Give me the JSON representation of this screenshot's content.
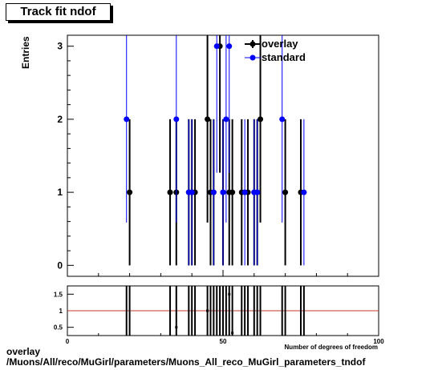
{
  "title": "Track fit ndof",
  "footer": {
    "line1": "overlay",
    "line2": "/Muons/All/reco/MuGirl/parameters/Muons_All_reco_MuGirl_parameters_tndof"
  },
  "chart_data": [
    {
      "type": "scatter",
      "panel": "main",
      "ylabel": "Entries",
      "xlim": [
        0,
        100
      ],
      "ylim": [
        -0.15,
        3.15
      ],
      "yticks": [
        "0",
        "1",
        "2",
        "3"
      ],
      "legend": {
        "placement": "top-right",
        "entries": [
          "overlay",
          "standard"
        ]
      },
      "series": [
        {
          "name": "overlay",
          "color": "#000000",
          "points": [
            [
              20,
              1
            ],
            [
              33,
              1
            ],
            [
              35,
              1
            ],
            [
              39,
              1
            ],
            [
              40,
              1
            ],
            [
              41,
              1
            ],
            [
              45,
              2
            ],
            [
              46,
              1
            ],
            [
              47,
              1
            ],
            [
              49,
              3
            ],
            [
              50,
              1
            ],
            [
              52,
              1
            ],
            [
              53,
              1
            ],
            [
              56,
              1
            ],
            [
              58,
              1
            ],
            [
              60,
              1
            ],
            [
              61,
              1
            ],
            [
              62,
              2
            ],
            [
              70,
              1
            ],
            [
              75,
              1
            ]
          ]
        },
        {
          "name": "standard",
          "color": "#0000ff",
          "points": [
            [
              19,
              2
            ],
            [
              35,
              2
            ],
            [
              39,
              1
            ],
            [
              40,
              1
            ],
            [
              47,
              1
            ],
            [
              48,
              3
            ],
            [
              50,
              1
            ],
            [
              51,
              2
            ],
            [
              52,
              3
            ],
            [
              57,
              1
            ],
            [
              60,
              1
            ],
            [
              61,
              1
            ],
            [
              69,
              2
            ],
            [
              76,
              1
            ]
          ]
        }
      ]
    },
    {
      "type": "scatter",
      "panel": "ratio",
      "xlabel": "Number of degrees of freedom",
      "xlim": [
        0,
        100
      ],
      "xticks": [
        "0",
        "50",
        "100"
      ],
      "ylim": [
        0.25,
        1.75
      ],
      "yticks": [
        "0.5",
        "1",
        "1.5"
      ],
      "reference_line": {
        "y": 1,
        "color": "#c0392b"
      },
      "points": [
        [
          35,
          0.5
        ],
        [
          45,
          1
        ],
        [
          52,
          1.5
        ],
        [
          53,
          0.33
        ]
      ]
    }
  ]
}
